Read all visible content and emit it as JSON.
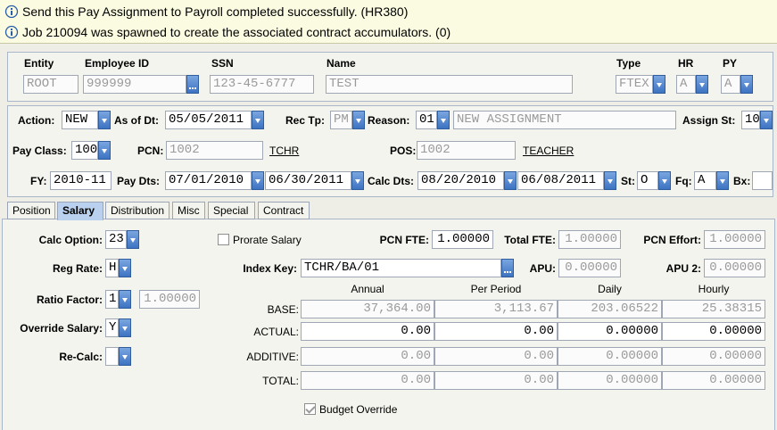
{
  "messages": [
    "Send this Pay Assignment to Payroll completed successfully. (HR380)",
    "Job 210094 was spawned to create the associated contract accumulators. (0)"
  ],
  "header": {
    "entity": {
      "label": "Entity",
      "value": "ROOT"
    },
    "employee_id": {
      "label": "Employee ID",
      "value": "999999"
    },
    "ssn": {
      "label": "SSN",
      "value": "123-45-6777"
    },
    "name": {
      "label": "Name",
      "value": "TEST"
    },
    "type": {
      "label": "Type",
      "value": "FTEX"
    },
    "hr": {
      "label": "HR",
      "value": "A"
    },
    "py": {
      "label": "PY",
      "value": "A"
    }
  },
  "assignment": {
    "action": {
      "label": "Action:",
      "value": "NEW"
    },
    "as_of_dt": {
      "label": "As of Dt:",
      "value": "05/05/2011"
    },
    "rec_tp": {
      "label": "Rec Tp:",
      "value": "PM"
    },
    "reason": {
      "label": "Reason:",
      "value": "01",
      "description": "NEW ASSIGNMENT"
    },
    "assign_st": {
      "label": "Assign St:",
      "value": "10"
    },
    "pay_class": {
      "label": "Pay Class:",
      "value": "100"
    },
    "pcn": {
      "label": "PCN:",
      "value": "1002",
      "link": "TCHR"
    },
    "pos": {
      "label": "POS:",
      "value": "1002",
      "link": "TEACHER"
    },
    "fy": {
      "label": "FY:",
      "value": "2010-11"
    },
    "pay_dts": {
      "label": "Pay Dts:",
      "values": [
        "07/01/2010",
        "06/30/2011"
      ]
    },
    "calc_dts": {
      "label": "Calc Dts:",
      "values": [
        "08/20/2010",
        "06/08/2011"
      ]
    },
    "st": {
      "label": "St:",
      "value": "O"
    },
    "fq": {
      "label": "Fq:",
      "value": "A"
    },
    "bx": {
      "label": "Bx:"
    }
  },
  "tabs": {
    "items": [
      "Position",
      "Salary",
      "Distribution",
      "Misc",
      "Special",
      "Contract"
    ],
    "selected": 1
  },
  "salary": {
    "calc_option": {
      "label": "Calc Option:",
      "value": "23"
    },
    "reg_rate": {
      "label": "Reg Rate:",
      "value": "H"
    },
    "ratio_factor": {
      "label": "Ratio Factor:",
      "value": "1",
      "factor": "1.00000"
    },
    "override_salary": {
      "label": "Override Salary:",
      "value": "Y"
    },
    "re_calc": {
      "label": "Re-Calc:"
    },
    "prorate_salary": {
      "label": "Prorate Salary",
      "checked": false
    },
    "pcn_fte": {
      "label": "PCN FTE:",
      "value": "1.00000"
    },
    "total_fte": {
      "label": "Total FTE:",
      "value": "1.00000"
    },
    "pcn_effort": {
      "label": "PCN Effort:",
      "value": "1.00000"
    },
    "index_key": {
      "label": "Index Key:",
      "value": "TCHR/BA/01"
    },
    "apu": {
      "label": "APU:",
      "value": "0.00000"
    },
    "apu_2": {
      "label": "APU 2:",
      "value": "0.00000"
    },
    "table": {
      "columns": [
        "Annual",
        "Per Period",
        "Daily",
        "Hourly"
      ],
      "rows": [
        {
          "label": "BASE:",
          "values": [
            "37,364.00",
            "3,113.67",
            "203.06522",
            "25.38315"
          ]
        },
        {
          "label": "ACTUAL:",
          "values": [
            "0.00",
            "0.00",
            "0.00000",
            "0.00000"
          ]
        },
        {
          "label": "ADDITIVE:",
          "values": [
            "0.00",
            "0.00",
            "0.00000",
            "0.00000"
          ]
        },
        {
          "label": "TOTAL:",
          "values": [
            "0.00",
            "0.00",
            "0.00000",
            "0.00000"
          ]
        }
      ]
    },
    "budget_override": {
      "label": "Budget Override",
      "checked": true
    }
  }
}
